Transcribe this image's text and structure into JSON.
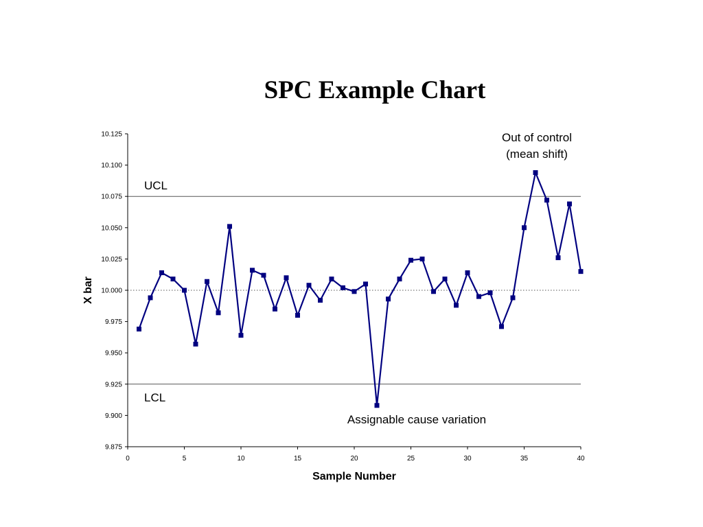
{
  "chart_data": {
    "type": "line",
    "title": "SPC Example Chart",
    "xlabel": "Sample Number",
    "ylabel": "X bar",
    "xlim": [
      0,
      40
    ],
    "ylim": [
      9.875,
      10.125
    ],
    "x_ticks": [
      "0",
      "5",
      "10",
      "15",
      "20",
      "25",
      "30",
      "35",
      "40"
    ],
    "y_ticks": [
      "9.875",
      "9.900",
      "9.925",
      "9.950",
      "9.975",
      "10.000",
      "10.025",
      "10.050",
      "10.075",
      "10.100",
      "10.125"
    ],
    "grid": false,
    "legend": "none",
    "series_color": "#000080",
    "series": [
      {
        "x": [
          1,
          2,
          3,
          4,
          5,
          6,
          7,
          8,
          9,
          10,
          11,
          12,
          13,
          14,
          15,
          16,
          17,
          18,
          19,
          20,
          21,
          22,
          23,
          24,
          25,
          26,
          27,
          28,
          29,
          30,
          31,
          32,
          33,
          34,
          35,
          36,
          37,
          38,
          39,
          40
        ],
        "values": [
          9.969,
          9.994,
          10.014,
          10.009,
          10.0,
          9.957,
          10.007,
          9.982,
          10.051,
          9.964,
          10.016,
          10.012,
          9.985,
          10.01,
          9.98,
          10.004,
          9.992,
          10.009,
          10.002,
          9.999,
          10.005,
          9.908,
          9.993,
          10.009,
          10.024,
          10.025,
          9.999,
          10.009,
          9.988,
          10.014,
          9.995,
          9.998,
          9.971,
          9.994,
          10.05,
          10.094,
          10.072,
          10.026,
          10.069,
          10.015
        ]
      }
    ],
    "reference_lines": [
      {
        "label": "UCL",
        "value": 10.075,
        "style": "solid"
      },
      {
        "label": "",
        "value": 10.0,
        "style": "dotted"
      },
      {
        "label": "LCL",
        "value": 9.925,
        "style": "solid"
      }
    ],
    "annotations": {
      "out_of_control_line1": "Out of control",
      "out_of_control_line2": "(mean shift)",
      "assignable_cause": "Assignable cause variation"
    }
  }
}
